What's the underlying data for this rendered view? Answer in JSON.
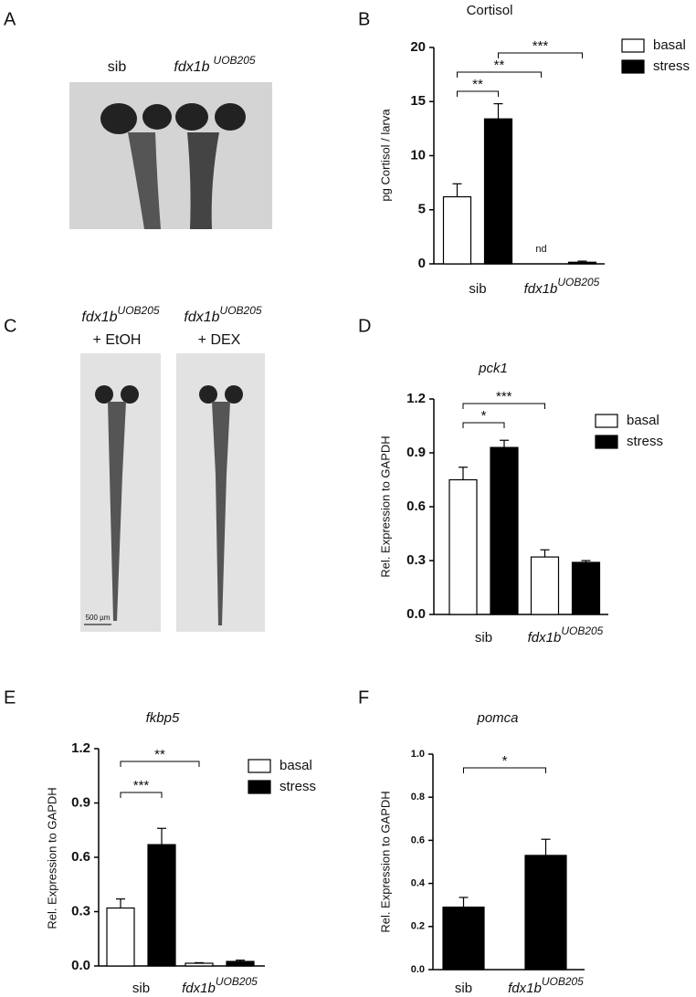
{
  "images": [
    {
      "panel": "A",
      "captions": [
        {
          "text": "sib"
        },
        {
          "text": "fdx1b",
          "superscript": "UOB205"
        }
      ]
    },
    {
      "panel": "C",
      "captions": [
        {
          "text": "fdx1b",
          "superscript": "UOB205",
          "line2": "+ EtOH"
        },
        {
          "text": "fdx1b",
          "superscript": "UOB205",
          "line2": "+ DEX"
        }
      ],
      "scale_bar": "500 µm"
    }
  ],
  "chart_data": [
    {
      "type": "bar",
      "panel": "B",
      "title": "Cortisol",
      "title_italic": false,
      "ylabel": "pg Cortisol / larva",
      "categories": [
        "sib",
        "fdx1b"
      ],
      "category_superscripts": [
        null,
        "UOB205"
      ],
      "ylim": [
        0,
        20
      ],
      "yticks": [
        0,
        5,
        10,
        15,
        20
      ],
      "legend": "upper right",
      "series": [
        {
          "name": "basal",
          "color": "#ffffff",
          "values": [
            6.2,
            null
          ],
          "errors": [
            1.2,
            null
          ],
          "value_labels": [
            null,
            "nd"
          ]
        },
        {
          "name": "stress",
          "color": "#000000",
          "values": [
            13.4,
            0.15
          ],
          "errors": [
            1.4,
            0.1
          ]
        }
      ],
      "significance": [
        {
          "groups": [
            [
              0,
              0
            ],
            [
              0,
              1
            ]
          ],
          "label": "**"
        },
        {
          "groups": [
            [
              0,
              0
            ],
            [
              1,
              0
            ]
          ],
          "label": "**"
        },
        {
          "groups": [
            [
              0,
              1
            ],
            [
              1,
              1
            ]
          ],
          "label": "***"
        }
      ]
    },
    {
      "type": "bar",
      "panel": "D",
      "title": "pck1",
      "title_italic": true,
      "ylabel": "Rel. Expression to GAPDH",
      "categories": [
        "sib",
        "fdx1b"
      ],
      "category_superscripts": [
        null,
        "UOB205"
      ],
      "ylim": [
        0,
        1.2
      ],
      "yticks": [
        {
          "value": 0,
          "label": "0.0"
        },
        0.3,
        0.6,
        0.9,
        1.2
      ],
      "legend": "upper right",
      "series": [
        {
          "name": "basal",
          "color": "#ffffff",
          "values": [
            0.75,
            0.32
          ],
          "errors": [
            0.07,
            0.04
          ]
        },
        {
          "name": "stress",
          "color": "#000000",
          "values": [
            0.93,
            0.29
          ],
          "errors": [
            0.04,
            0.01
          ]
        }
      ],
      "significance": [
        {
          "groups": [
            [
              0,
              0
            ],
            [
              0,
              1
            ]
          ],
          "label": "*"
        },
        {
          "groups": [
            [
              0,
              0
            ],
            [
              1,
              0
            ]
          ],
          "label": "***"
        }
      ]
    },
    {
      "type": "bar",
      "panel": "E",
      "title": "fkbp5",
      "title_italic": true,
      "ylabel": "Rel. Expression to GAPDH",
      "categories": [
        "sib",
        "fdx1b"
      ],
      "category_superscripts": [
        null,
        "UOB205"
      ],
      "ylim": [
        0,
        1.2
      ],
      "yticks": [
        {
          "value": 0,
          "label": "0.0"
        },
        0.3,
        0.6,
        0.9,
        1.2
      ],
      "legend": "upper right",
      "series": [
        {
          "name": "basal",
          "color": "#ffffff",
          "values": [
            0.32,
            0.015
          ],
          "errors": [
            0.05,
            0.003
          ]
        },
        {
          "name": "stress",
          "color": "#000000",
          "values": [
            0.67,
            0.025
          ],
          "errors": [
            0.09,
            0.007
          ]
        }
      ],
      "significance": [
        {
          "groups": [
            [
              0,
              0
            ],
            [
              0,
              1
            ]
          ],
          "label": "***"
        },
        {
          "groups": [
            [
              0,
              0
            ],
            [
              1,
              0
            ]
          ],
          "label": "**"
        }
      ]
    },
    {
      "type": "bar",
      "panel": "F",
      "title": "pomca",
      "title_italic": true,
      "ylabel": "Rel. Expression to GAPDH",
      "categories": [
        "sib",
        "fdx1b"
      ],
      "category_superscripts": [
        null,
        "UOB205"
      ],
      "ylim": [
        0,
        1.0
      ],
      "yticks": [
        {
          "value": 0,
          "label": "0.0"
        },
        0.2,
        0.4,
        0.6,
        0.8,
        {
          "value": 1.0,
          "label": "1.0"
        }
      ],
      "series": [
        {
          "color": "#000000",
          "values": [
            0.29,
            0.53
          ],
          "errors": [
            0.045,
            0.075
          ]
        }
      ],
      "significance": [
        {
          "groups": [
            [
              0,
              0
            ],
            [
              1,
              0
            ]
          ],
          "label": "*"
        }
      ]
    }
  ]
}
